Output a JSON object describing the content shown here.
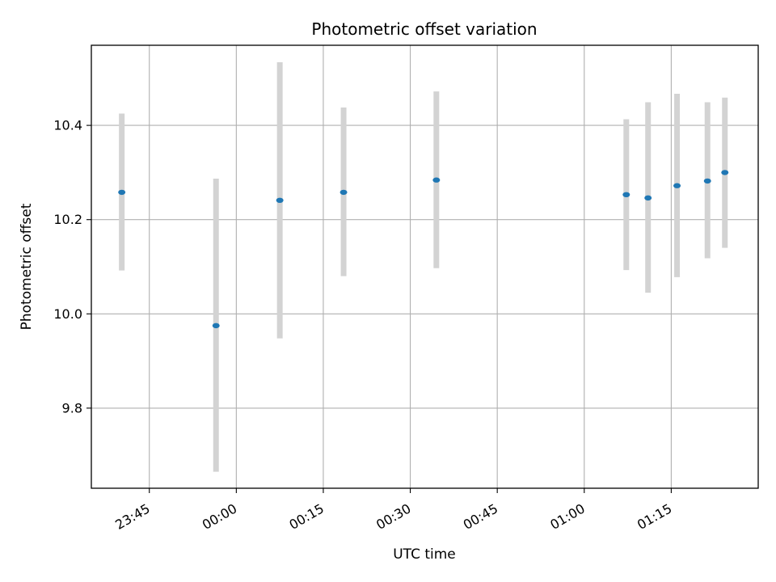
{
  "chart_data": {
    "type": "scatter",
    "title": "Photometric offset variation",
    "xlabel": "UTC time",
    "ylabel": "Photometric offset",
    "x_axis_type": "time",
    "xlim": [
      "23:35",
      "01:30"
    ],
    "ylim": [
      9.63,
      10.57
    ],
    "x_ticks": [
      "23:45",
      "00:00",
      "00:15",
      "00:30",
      "00:45",
      "01:00",
      "01:15"
    ],
    "y_ticks": [
      9.8,
      10.0,
      10.2,
      10.4
    ],
    "y_tick_labels": [
      "9.8",
      "10.0",
      "10.2",
      "10.4"
    ],
    "grid": true,
    "x_tick_rotation": "30 degrees",
    "colors": {
      "marker": "#1f77b4",
      "errorbar": "#d3d3d3",
      "grid": "#b0b0b0"
    },
    "series": [
      {
        "points": [
          {
            "x": "23:40:15",
            "y": 10.258,
            "low": 10.092,
            "high": 10.425
          },
          {
            "x": "23:56:30",
            "y": 9.975,
            "low": 9.665,
            "high": 10.287
          },
          {
            "x": "00:07:30",
            "y": 10.241,
            "low": 9.948,
            "high": 10.534
          },
          {
            "x": "00:18:30",
            "y": 10.258,
            "low": 10.08,
            "high": 10.438
          },
          {
            "x": "00:34:30",
            "y": 10.284,
            "low": 10.097,
            "high": 10.472
          },
          {
            "x": "01:07:15",
            "y": 10.253,
            "low": 10.093,
            "high": 10.413
          },
          {
            "x": "01:11:00",
            "y": 10.246,
            "low": 10.045,
            "high": 10.449
          },
          {
            "x": "01:16:00",
            "y": 10.272,
            "low": 10.078,
            "high": 10.467
          },
          {
            "x": "01:21:15",
            "y": 10.282,
            "low": 10.118,
            "high": 10.449
          },
          {
            "x": "01:24:15",
            "y": 10.3,
            "low": 10.14,
            "high": 10.459
          }
        ]
      }
    ]
  }
}
